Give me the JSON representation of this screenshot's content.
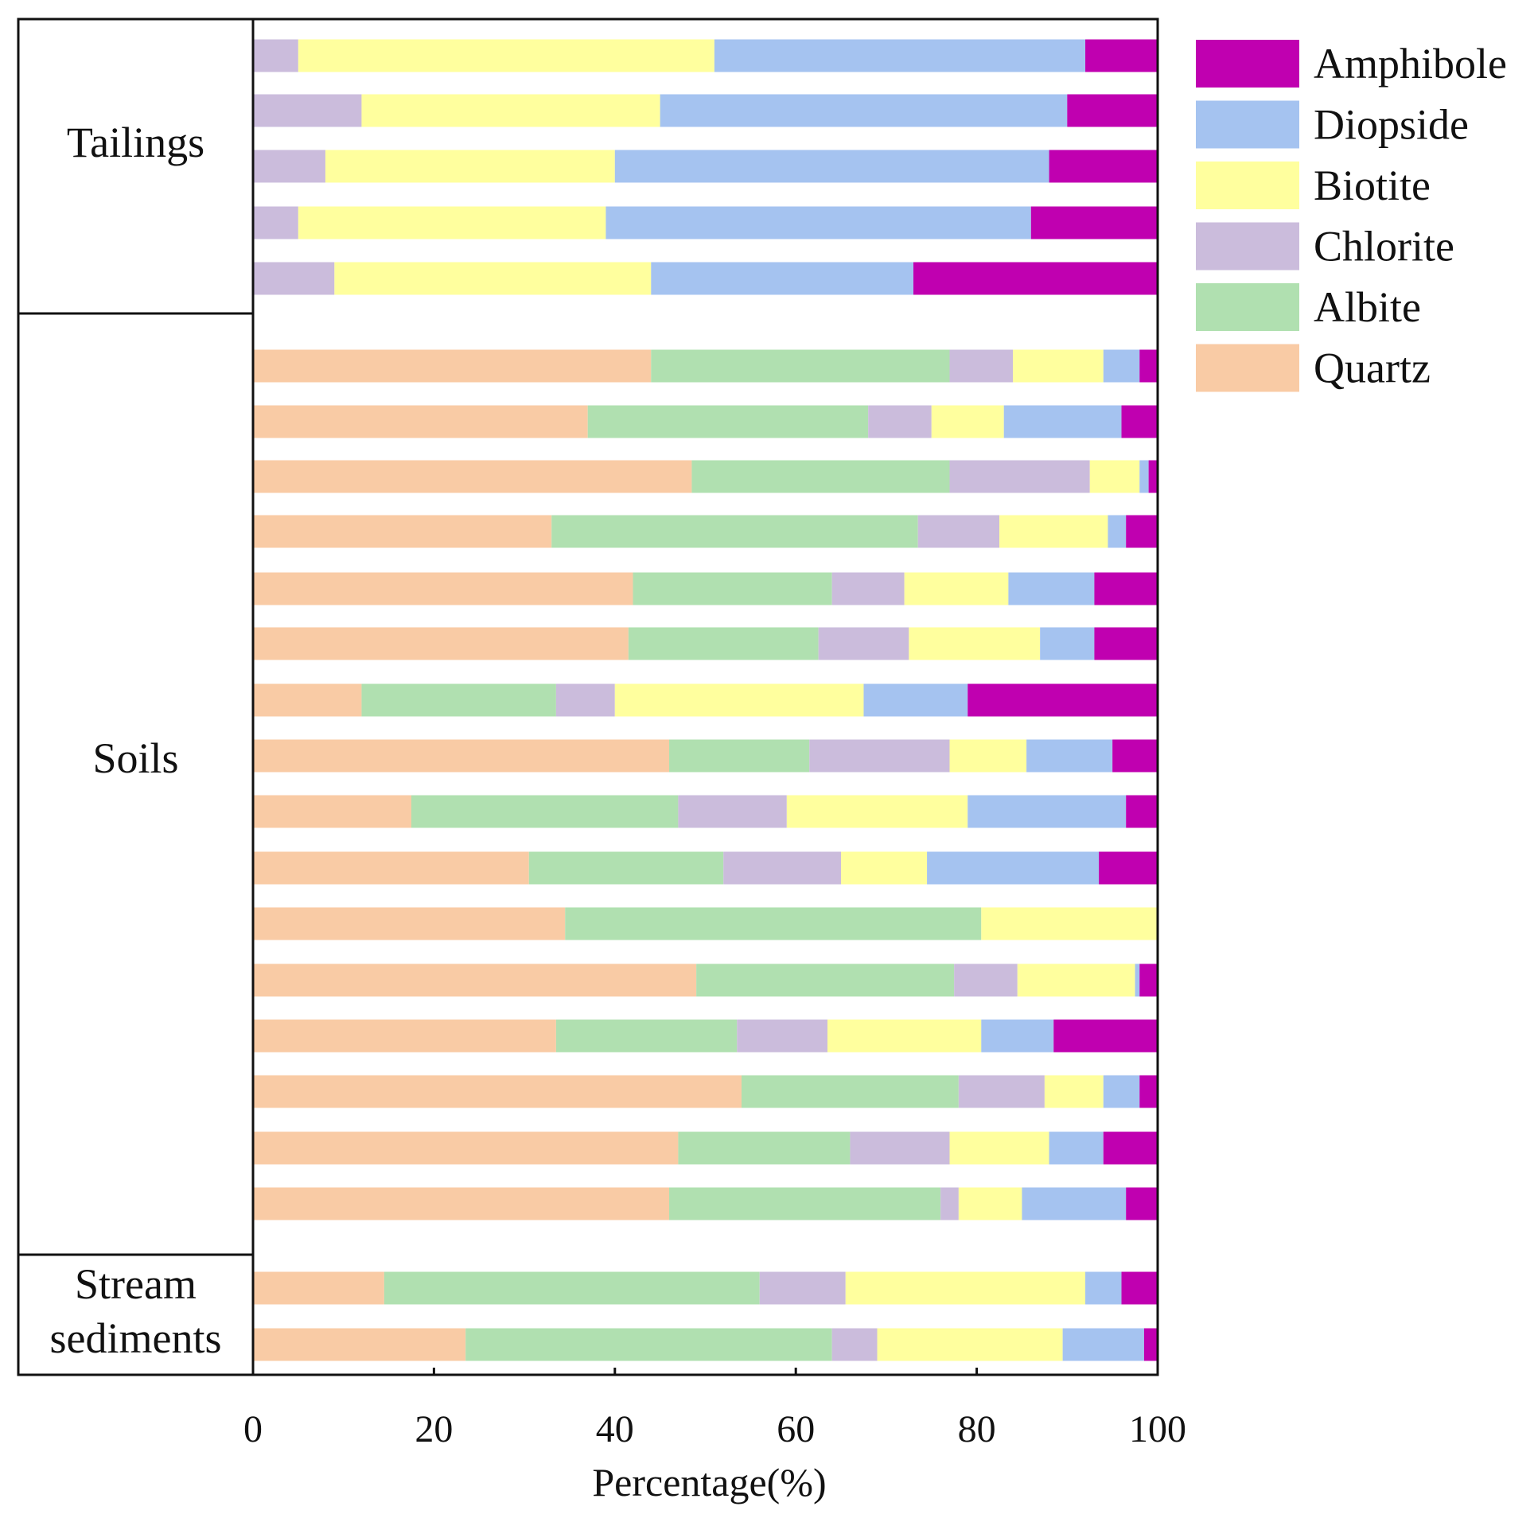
{
  "chart_data": {
    "type": "bar",
    "orientation": "horizontal",
    "stacked": true,
    "title": "",
    "xlabel": "Percentage(%)",
    "ylabel": "",
    "xlim": [
      0,
      100
    ],
    "xticks": [
      0,
      20,
      40,
      60,
      80,
      100
    ],
    "grid": false,
    "legend_position": "right",
    "series": [
      {
        "name": "Quartz",
        "color": "#f9cba5"
      },
      {
        "name": "Albite",
        "color": "#b0e0b0"
      },
      {
        "name": "Chlorite",
        "color": "#cbbcdc"
      },
      {
        "name": "Biotite",
        "color": "#ffff9e"
      },
      {
        "name": "Diopside",
        "color": "#a5c3f0"
      },
      {
        "name": "Amphibole",
        "color": "#c000b0"
      }
    ],
    "legend_order": [
      "Amphibole",
      "Diopside",
      "Biotite",
      "Chlorite",
      "Albite",
      "Quartz"
    ],
    "groups": [
      {
        "label": "Tailings",
        "rows": [
          [
            0,
            0,
            5,
            46,
            41,
            8
          ],
          [
            0,
            0,
            12,
            33,
            45,
            10
          ],
          [
            0,
            0,
            8,
            32,
            48,
            12
          ],
          [
            0,
            0,
            5,
            34,
            47,
            14
          ],
          [
            0,
            0,
            9,
            35,
            29,
            27
          ]
        ]
      },
      {
        "label": "Soils",
        "rows": [
          [
            44,
            33,
            7,
            10,
            4,
            2
          ],
          [
            37,
            31,
            7,
            8,
            13,
            4
          ],
          [
            48.5,
            28.5,
            15.5,
            5.5,
            1,
            1
          ],
          [
            33,
            40.5,
            9,
            12,
            2,
            3.5
          ],
          [
            42,
            22,
            8,
            11.5,
            9.5,
            7
          ],
          [
            41.5,
            21,
            10,
            14.5,
            6,
            7
          ],
          [
            12,
            21.5,
            6.5,
            27.5,
            11.5,
            21
          ],
          [
            46,
            15.5,
            15.5,
            8.5,
            9.5,
            5
          ],
          [
            17.5,
            29.5,
            12,
            20,
            17.5,
            3.5
          ],
          [
            30.5,
            21.5,
            13,
            9.5,
            19,
            6.5
          ],
          [
            34.5,
            46,
            0,
            19.5,
            0,
            0
          ],
          [
            49,
            28.5,
            7,
            13,
            0.5,
            2
          ],
          [
            33.5,
            20,
            10,
            17,
            8,
            11.5
          ],
          [
            54,
            24,
            9.5,
            6.5,
            4,
            2
          ],
          [
            47,
            19,
            11,
            11,
            6,
            6
          ],
          [
            46,
            30,
            2,
            7,
            11.5,
            3.5
          ]
        ]
      },
      {
        "label": "Stream sediments",
        "label_lines": [
          "Stream",
          "sediments"
        ],
        "rows": [
          [
            14.5,
            41.5,
            9.5,
            26.5,
            4,
            4
          ],
          [
            23.5,
            40.5,
            5,
            20.5,
            9,
            1.5
          ]
        ]
      }
    ]
  }
}
